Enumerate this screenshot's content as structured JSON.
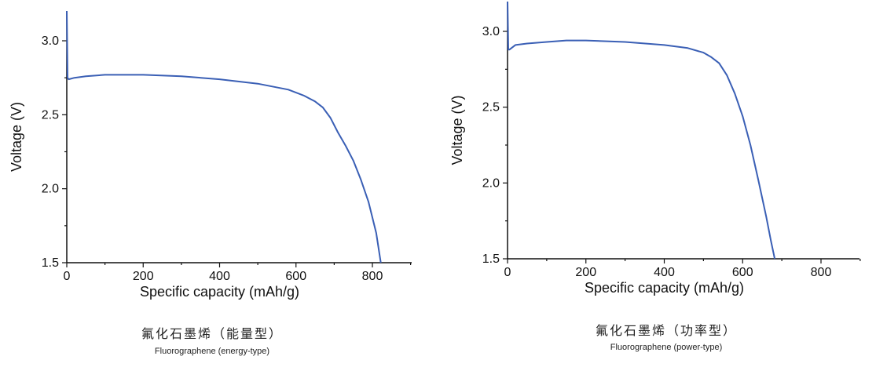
{
  "chart_data": [
    {
      "type": "line",
      "title": "",
      "xlabel": "Specific capacity (mAh/g)",
      "ylabel": "Voltage (V)",
      "xlim": [
        0,
        900
      ],
      "ylim": [
        1.5,
        3.2
      ],
      "xticks": [
        0,
        200,
        400,
        600,
        800
      ],
      "yticks": [
        1.5,
        2.0,
        2.5,
        3.0
      ],
      "ytick_labels": [
        "1.5",
        "2.0",
        "2.5",
        "3.0"
      ],
      "grid": false,
      "color": "#3a5fb5",
      "caption_cn": "氟化石墨烯（能量型）",
      "caption_en": "Fluorographene (energy-type)",
      "series": [
        {
          "x": [
            0,
            2,
            5,
            20,
            50,
            100,
            150,
            200,
            300,
            400,
            500,
            580,
            620,
            650,
            670,
            690,
            710,
            730,
            750,
            770,
            790,
            810,
            822
          ],
          "y": [
            3.22,
            2.75,
            2.74,
            2.75,
            2.76,
            2.77,
            2.77,
            2.77,
            2.76,
            2.74,
            2.71,
            2.67,
            2.63,
            2.59,
            2.55,
            2.48,
            2.38,
            2.29,
            2.19,
            2.06,
            1.91,
            1.7,
            1.5
          ]
        }
      ]
    },
    {
      "type": "line",
      "title": "",
      "xlabel": "Specific capacity (mAh/g)",
      "ylabel": "Voltage (V)",
      "xlim": [
        0,
        900
      ],
      "ylim": [
        1.5,
        3.2
      ],
      "xticks": [
        0,
        200,
        400,
        600,
        800
      ],
      "yticks": [
        1.5,
        2.0,
        2.5,
        3.0
      ],
      "ytick_labels": [
        "1.5",
        "2.0",
        "2.5",
        "3.0"
      ],
      "grid": false,
      "color": "#3a5fb5",
      "caption_cn": "氟化石墨烯（功率型）",
      "caption_en": "Fluorographene (power-type)",
      "series": [
        {
          "x": [
            0,
            2,
            5,
            20,
            50,
            100,
            150,
            200,
            300,
            400,
            460,
            500,
            520,
            540,
            560,
            580,
            600,
            620,
            640,
            660,
            672,
            682
          ],
          "y": [
            3.2,
            2.88,
            2.88,
            2.91,
            2.92,
            2.93,
            2.94,
            2.94,
            2.93,
            2.91,
            2.89,
            2.86,
            2.83,
            2.79,
            2.71,
            2.59,
            2.44,
            2.25,
            2.02,
            1.78,
            1.62,
            1.5
          ]
        }
      ]
    }
  ]
}
